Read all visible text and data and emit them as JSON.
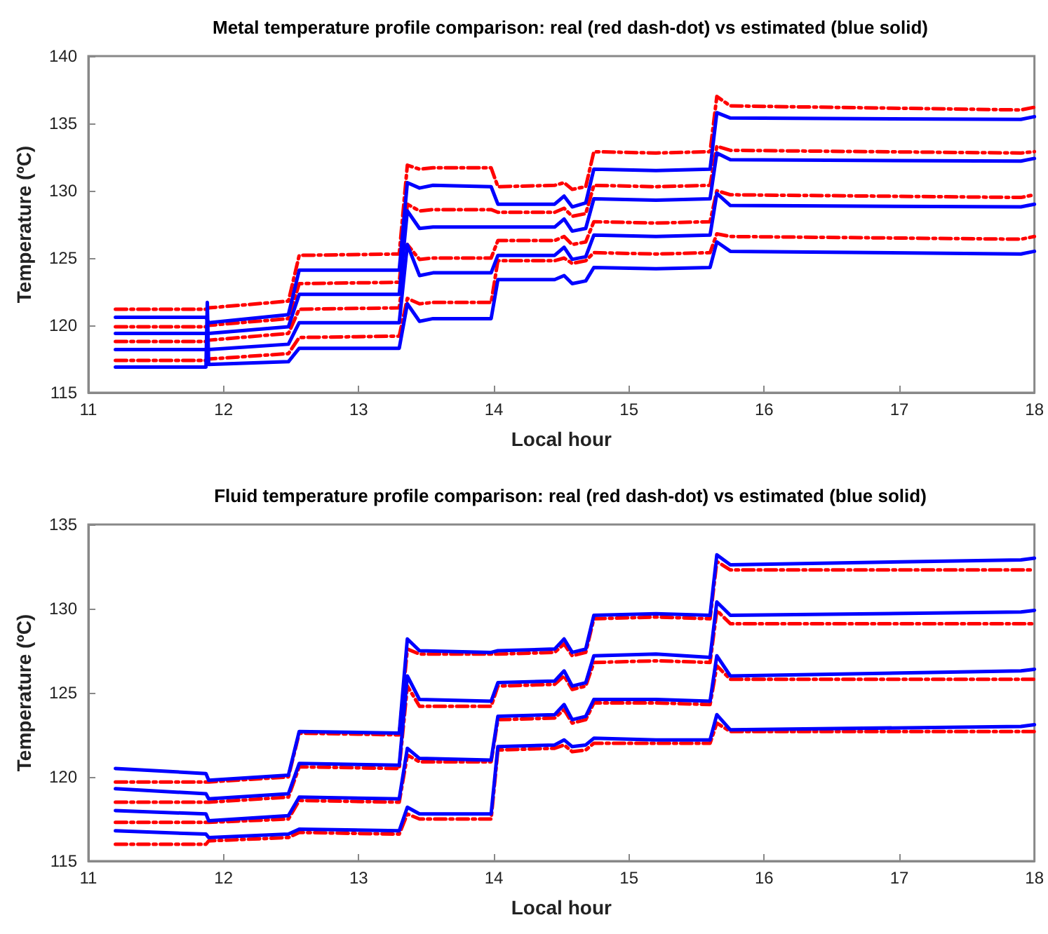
{
  "chart_data": [
    {
      "type": "line",
      "title": "Metal temperature profile comparison: real (red dash-dot) vs estimated (blue solid)",
      "xlabel": "Local hour",
      "ylabel": "Temperature (ºC)",
      "xlim": [
        11,
        18
      ],
      "xticks": [
        11,
        12,
        13,
        14,
        15,
        16,
        17,
        18
      ],
      "ylim": [
        115,
        140
      ],
      "yticks": [
        115,
        120,
        125,
        130,
        135,
        140
      ],
      "marker": "none",
      "series": [
        {
          "color": "#ff0000",
          "line_style": "dashed",
          "x": [
            11.2,
            11.87,
            11.88,
            11.89,
            12.48,
            12.56,
            13.3,
            13.36,
            13.45,
            13.55,
            13.98,
            14.03,
            14.45,
            14.52,
            14.58,
            14.68,
            14.74,
            15.2,
            15.6,
            15.65,
            15.75,
            17.9,
            18
          ],
          "values": [
            121.2,
            121.2,
            121.2,
            121.3,
            121.8,
            125.2,
            125.3,
            131.9,
            131.6,
            131.7,
            131.7,
            130.3,
            130.4,
            130.6,
            130.1,
            130.3,
            132.9,
            132.8,
            132.9,
            137.0,
            136.3,
            136.0,
            136.2
          ]
        },
        {
          "color": "#ff0000",
          "line_style": "dashed",
          "x": [
            11.2,
            11.87,
            11.88,
            11.89,
            12.48,
            12.56,
            13.3,
            13.36,
            13.45,
            13.55,
            13.98,
            14.03,
            14.45,
            14.52,
            14.58,
            14.68,
            14.74,
            15.2,
            15.6,
            15.65,
            15.75,
            17.9,
            18
          ],
          "values": [
            119.9,
            119.9,
            119.9,
            120.0,
            120.5,
            123.1,
            123.2,
            129.0,
            128.5,
            128.6,
            128.6,
            128.4,
            128.4,
            128.7,
            128.1,
            128.3,
            130.4,
            130.3,
            130.4,
            133.3,
            133.0,
            132.8,
            132.9
          ]
        },
        {
          "color": "#ff0000",
          "line_style": "dashed",
          "x": [
            11.2,
            11.87,
            11.88,
            11.89,
            12.48,
            12.56,
            13.3,
            13.36,
            13.45,
            13.55,
            13.98,
            14.03,
            14.45,
            14.52,
            14.58,
            14.68,
            14.74,
            15.2,
            15.6,
            15.65,
            15.75,
            17.9,
            18
          ],
          "values": [
            118.8,
            118.8,
            118.8,
            118.9,
            119.4,
            121.2,
            121.3,
            126.0,
            124.9,
            125.0,
            125.0,
            126.3,
            126.3,
            126.6,
            126.0,
            126.2,
            127.7,
            127.6,
            127.7,
            130.0,
            129.7,
            129.5,
            129.7
          ]
        },
        {
          "color": "#ff0000",
          "line_style": "dashed",
          "x": [
            11.2,
            11.87,
            11.88,
            11.89,
            12.48,
            12.56,
            13.3,
            13.36,
            13.45,
            13.55,
            13.98,
            14.03,
            14.45,
            14.52,
            14.58,
            14.68,
            14.74,
            15.2,
            15.6,
            15.65,
            15.75,
            17.9,
            18
          ],
          "values": [
            117.4,
            117.4,
            117.4,
            117.5,
            117.9,
            119.1,
            119.2,
            122.0,
            121.6,
            121.7,
            121.7,
            124.8,
            124.8,
            125.0,
            124.6,
            124.8,
            125.4,
            125.3,
            125.4,
            126.8,
            126.6,
            126.4,
            126.6
          ]
        },
        {
          "color": "#0000ff",
          "line_style": "solid",
          "x": [
            11.2,
            11.87,
            11.88,
            11.89,
            12.48,
            12.56,
            13.3,
            13.36,
            13.45,
            13.55,
            13.98,
            14.03,
            14.45,
            14.52,
            14.58,
            14.68,
            14.74,
            15.2,
            15.6,
            15.65,
            15.75,
            17.9,
            18
          ],
          "values": [
            120.6,
            120.6,
            120.4,
            120.2,
            120.8,
            124.1,
            124.1,
            130.6,
            130.2,
            130.4,
            130.3,
            129.0,
            129.0,
            129.6,
            128.8,
            129.1,
            131.6,
            131.5,
            131.6,
            135.8,
            135.4,
            135.3,
            135.5
          ]
        },
        {
          "color": "#0000ff",
          "line_style": "solid",
          "x": [
            11.2,
            11.87,
            11.88,
            11.89,
            12.48,
            12.56,
            13.3,
            13.36,
            13.45,
            13.55,
            13.98,
            14.03,
            14.45,
            14.52,
            14.58,
            14.68,
            14.74,
            15.2,
            15.6,
            15.65,
            15.75,
            17.9,
            18
          ],
          "values": [
            119.4,
            119.4,
            119.4,
            119.4,
            119.9,
            122.3,
            122.3,
            128.5,
            127.2,
            127.3,
            127.3,
            127.3,
            127.3,
            127.9,
            127.0,
            127.2,
            129.4,
            129.3,
            129.4,
            132.8,
            132.3,
            132.2,
            132.4
          ]
        },
        {
          "color": "#0000ff",
          "line_style": "solid",
          "x": [
            11.2,
            11.87,
            11.88,
            11.89,
            12.48,
            12.56,
            13.3,
            13.36,
            13.45,
            13.55,
            13.98,
            14.03,
            14.45,
            14.52,
            14.58,
            14.68,
            14.74,
            15.2,
            15.6,
            15.65,
            15.75,
            17.9,
            18
          ],
          "values": [
            118.2,
            118.2,
            118.2,
            118.2,
            118.6,
            120.2,
            120.2,
            126.0,
            123.7,
            123.9,
            123.9,
            125.2,
            125.2,
            125.8,
            124.9,
            125.1,
            126.7,
            126.6,
            126.7,
            129.8,
            128.9,
            128.8,
            129.0
          ]
        },
        {
          "color": "#0000ff",
          "line_style": "solid",
          "x": [
            11.2,
            11.87,
            11.88,
            11.89,
            12.48,
            12.56,
            13.3,
            13.36,
            13.45,
            13.55,
            13.98,
            14.03,
            14.45,
            14.52,
            14.58,
            14.68,
            14.74,
            15.2,
            15.6,
            15.65,
            15.75,
            17.9,
            18
          ],
          "values": [
            116.9,
            116.9,
            121.7,
            117.1,
            117.3,
            118.3,
            118.3,
            121.6,
            120.3,
            120.5,
            120.5,
            123.4,
            123.4,
            123.7,
            123.1,
            123.3,
            124.3,
            124.2,
            124.3,
            126.2,
            125.5,
            125.3,
            125.5
          ]
        }
      ]
    },
    {
      "type": "line",
      "title": "Fluid temperature profile comparison: real (red dash-dot) vs estimated (blue solid)",
      "xlabel": "Local hour",
      "ylabel": "Temperature (ºC)",
      "xlim": [
        11,
        18
      ],
      "xticks": [
        11,
        12,
        13,
        14,
        15,
        16,
        17,
        18
      ],
      "ylim": [
        115,
        135
      ],
      "yticks": [
        115,
        120,
        125,
        130,
        135
      ],
      "marker": "none",
      "series": [
        {
          "color": "#ff0000",
          "line_style": "dashed",
          "x": [
            11.2,
            11.87,
            11.89,
            12.48,
            12.56,
            13.3,
            13.36,
            13.45,
            13.98,
            14.03,
            14.45,
            14.52,
            14.58,
            14.68,
            14.74,
            15.2,
            15.6,
            15.65,
            15.75,
            17.9,
            18
          ],
          "values": [
            119.7,
            119.7,
            119.7,
            120.0,
            122.6,
            122.5,
            127.6,
            127.3,
            127.3,
            127.3,
            127.4,
            127.9,
            127.2,
            127.4,
            129.4,
            129.5,
            129.4,
            132.8,
            132.3,
            132.3,
            132.3
          ]
        },
        {
          "color": "#ff0000",
          "line_style": "dashed",
          "x": [
            11.2,
            11.87,
            11.89,
            12.48,
            12.56,
            13.3,
            13.36,
            13.45,
            13.98,
            14.03,
            14.45,
            14.52,
            14.58,
            14.68,
            14.74,
            15.2,
            15.6,
            15.65,
            15.75,
            17.9,
            18
          ],
          "values": [
            118.5,
            118.5,
            118.5,
            118.8,
            120.6,
            120.5,
            125.4,
            124.2,
            124.2,
            125.4,
            125.5,
            126.0,
            125.2,
            125.4,
            126.8,
            126.9,
            126.8,
            129.9,
            129.1,
            129.1,
            129.1
          ]
        },
        {
          "color": "#ff0000",
          "line_style": "dashed",
          "x": [
            11.2,
            11.87,
            11.89,
            12.48,
            12.56,
            13.3,
            13.36,
            13.45,
            13.98,
            14.03,
            14.45,
            14.52,
            14.58,
            14.68,
            14.74,
            15.2,
            15.6,
            15.65,
            15.75,
            17.9,
            18
          ],
          "values": [
            117.3,
            117.3,
            117.3,
            117.5,
            118.6,
            118.5,
            121.3,
            120.9,
            120.9,
            123.4,
            123.5,
            124.0,
            123.2,
            123.4,
            124.4,
            124.4,
            124.3,
            126.6,
            125.8,
            125.8,
            125.8
          ]
        },
        {
          "color": "#ff0000",
          "line_style": "dashed",
          "x": [
            11.2,
            11.87,
            11.89,
            12.48,
            12.56,
            13.3,
            13.36,
            13.45,
            13.98,
            14.03,
            14.45,
            14.52,
            14.58,
            14.68,
            14.74,
            15.2,
            15.6,
            15.65,
            15.75,
            17.9,
            18
          ],
          "values": [
            116.0,
            116.0,
            116.2,
            116.4,
            116.7,
            116.6,
            117.8,
            117.5,
            117.5,
            121.6,
            121.7,
            121.9,
            121.5,
            121.6,
            122.0,
            122.0,
            122.0,
            123.2,
            122.7,
            122.7,
            122.7
          ]
        },
        {
          "color": "#0000ff",
          "line_style": "solid",
          "x": [
            11.2,
            11.87,
            11.89,
            12.48,
            12.56,
            13.3,
            13.36,
            13.45,
            13.98,
            14.03,
            14.45,
            14.52,
            14.58,
            14.68,
            14.74,
            15.2,
            15.6,
            15.65,
            15.75,
            17.9,
            18
          ],
          "values": [
            120.5,
            120.2,
            119.8,
            120.1,
            122.7,
            122.6,
            128.2,
            127.5,
            127.4,
            127.5,
            127.6,
            128.2,
            127.4,
            127.6,
            129.6,
            129.7,
            129.6,
            133.2,
            132.6,
            132.9,
            133.0
          ]
        },
        {
          "color": "#0000ff",
          "line_style": "solid",
          "x": [
            11.2,
            11.87,
            11.89,
            12.48,
            12.56,
            13.3,
            13.36,
            13.45,
            13.98,
            14.03,
            14.45,
            14.52,
            14.58,
            14.68,
            14.74,
            15.2,
            15.6,
            15.65,
            15.75,
            17.9,
            18
          ],
          "values": [
            119.3,
            119.0,
            118.7,
            119.0,
            120.8,
            120.7,
            126.0,
            124.6,
            124.5,
            125.6,
            125.7,
            126.3,
            125.4,
            125.6,
            127.2,
            127.3,
            127.1,
            130.4,
            129.6,
            129.8,
            129.9
          ]
        },
        {
          "color": "#0000ff",
          "line_style": "solid",
          "x": [
            11.2,
            11.87,
            11.89,
            12.48,
            12.56,
            13.3,
            13.36,
            13.45,
            13.98,
            14.03,
            14.45,
            14.52,
            14.58,
            14.68,
            14.74,
            15.2,
            15.6,
            15.65,
            15.75,
            17.9,
            18
          ],
          "values": [
            118.0,
            117.8,
            117.4,
            117.7,
            118.8,
            118.7,
            121.7,
            121.1,
            121.0,
            123.6,
            123.7,
            124.3,
            123.4,
            123.6,
            124.6,
            124.6,
            124.5,
            127.2,
            126.0,
            126.3,
            126.4
          ]
        },
        {
          "color": "#0000ff",
          "line_style": "solid",
          "x": [
            11.2,
            11.87,
            11.89,
            12.48,
            12.56,
            13.3,
            13.36,
            13.45,
            13.98,
            14.03,
            14.45,
            14.52,
            14.58,
            14.68,
            14.74,
            15.2,
            15.6,
            15.65,
            15.75,
            17.9,
            18
          ],
          "values": [
            116.8,
            116.6,
            116.4,
            116.6,
            116.9,
            116.8,
            118.2,
            117.8,
            117.8,
            121.8,
            121.9,
            122.2,
            121.8,
            121.9,
            122.3,
            122.2,
            122.2,
            123.7,
            122.8,
            123.0,
            123.1
          ]
        }
      ]
    }
  ]
}
